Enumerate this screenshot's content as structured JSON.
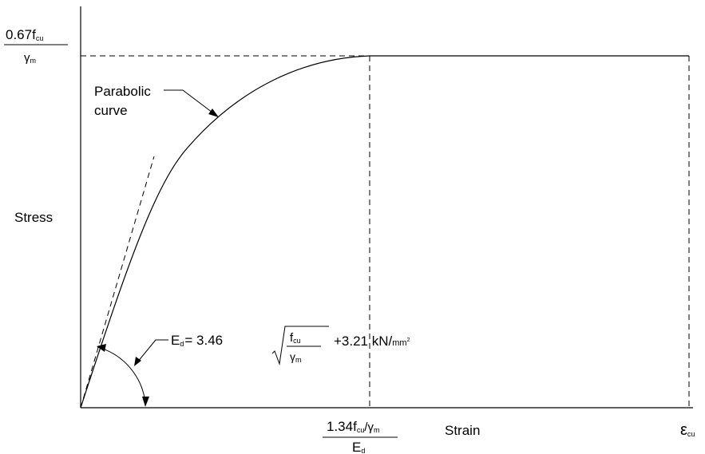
{
  "y_axis_label": "Stress",
  "x_axis_label": "Strain",
  "y_max_label": {
    "numerator": "0.67f",
    "numerator_sub": "cu",
    "denominator": "γ",
    "denominator_sub": "m"
  },
  "peak_strain_label": {
    "numerator_a": "1.34f",
    "numerator_a_sub": "cu",
    "numerator_b": "/γ",
    "numerator_b_sub": "m",
    "denominator": "E",
    "denominator_sub": "d"
  },
  "ultimate_strain_label": {
    "symbol": "ε",
    "sub": "cu"
  },
  "curve_annotation": [
    "Parabolic",
    "curve"
  ],
  "modulus_formula": {
    "lhs": "E",
    "lhs_sub": "d",
    "equals": "= 3.46",
    "frac_num": "f",
    "frac_num_sub": "cu",
    "frac_den": "γ",
    "frac_den_sub": "m",
    "tail": "+3.21 kN/",
    "unit": "mm",
    "unit_sup": "2"
  }
}
